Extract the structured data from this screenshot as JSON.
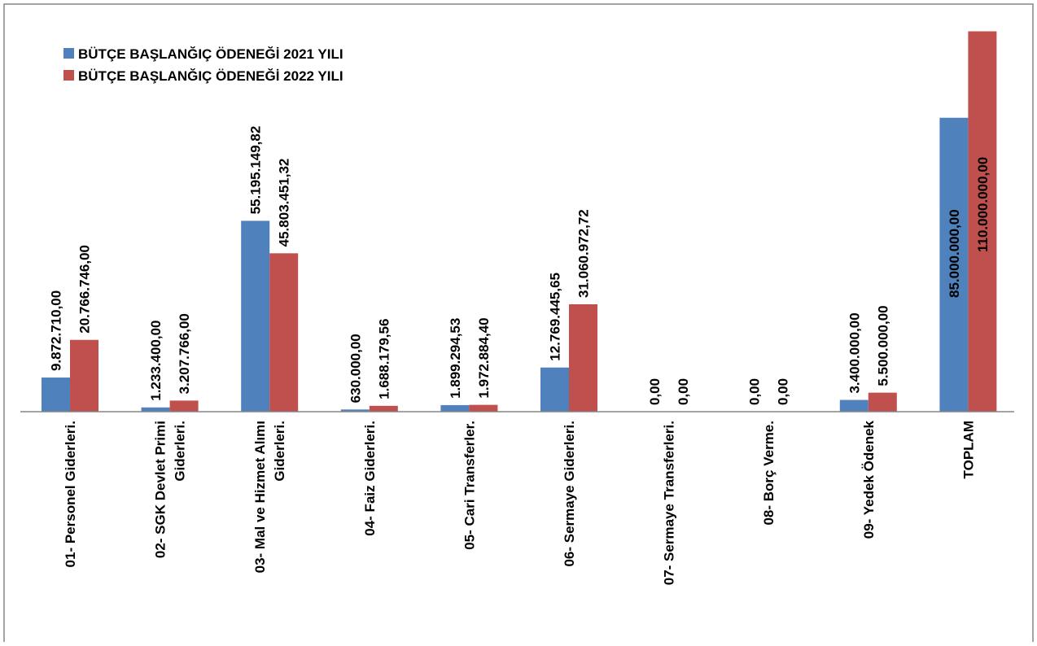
{
  "chart_data": {
    "type": "bar",
    "title": "",
    "xlabel": "",
    "ylabel": "",
    "ylim": [
      0,
      112000000
    ],
    "grid": false,
    "legend_position": "top-left",
    "categories": [
      [
        "01- Personel Giderleri."
      ],
      [
        "02- SGK Devlet Primi",
        "Giderleri."
      ],
      [
        "03- Mal ve Hizmet Alımı",
        "Giderleri."
      ],
      [
        "04- Faiz Giderleri."
      ],
      [
        "05- Cari Transferler."
      ],
      [
        "06- Sermaye Giderleri."
      ],
      [
        "07- Sermaye Transferleri."
      ],
      [
        "08- Borç Verme."
      ],
      [
        "09- Yedek Ödenek"
      ],
      [
        "TOPLAM"
      ]
    ],
    "series": [
      {
        "name": "BÜTÇE BAŞLANĞIÇ ÖDENEĞİ 2021 YILI",
        "color": "#4F81BD",
        "values": [
          9872710.0,
          1233400.0,
          55195149.82,
          630000.0,
          1899294.53,
          12769445.65,
          0.0,
          0.0,
          3400000.0,
          85000000.0
        ],
        "labels": [
          "9.872.710,00",
          "1.233.400,00",
          "55.195.149,82",
          "630.000,00",
          "1.899.294,53",
          "12.769.445,65",
          "0,00",
          "0,00",
          "3.400.000,00",
          "85.000.000,00"
        ]
      },
      {
        "name": "BÜTÇE BAŞLANĞIÇ ÖDENEĞİ 2022 YILI",
        "color": "#C0504D",
        "values": [
          20766746.0,
          3207766.0,
          45803451.32,
          1688179.56,
          1972884.4,
          31060972.72,
          0.0,
          0.0,
          5500000.0,
          110000000.0
        ],
        "labels": [
          "20.766.746,00",
          "3.207.766,00",
          "45.803.451,32",
          "1.688.179,56",
          "1.972.884,40",
          "31.060.972,72",
          "0,00",
          "0,00",
          "5.500.000,00",
          "110.000.000,00"
        ]
      }
    ]
  }
}
